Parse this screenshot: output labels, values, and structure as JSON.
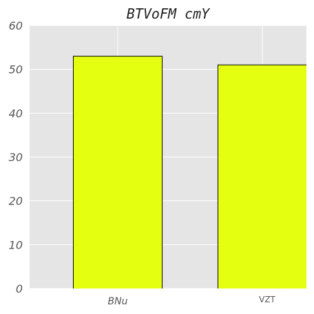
{
  "chart_data": {
    "type": "bar",
    "title": "BTVoFM cmY",
    "categories": [
      "BNu",
      "VZT"
    ],
    "values": [
      53,
      51
    ],
    "ylim": [
      0,
      60
    ],
    "yticks": [
      0,
      10,
      20,
      30,
      40,
      50,
      60
    ],
    "xlabel": "",
    "ylabel": "",
    "grid": true,
    "legend": "none",
    "colors": {
      "bar": "#e5ff11",
      "background": "#e5e5e5",
      "grid": "#ffffff",
      "edge": "#000000"
    }
  }
}
